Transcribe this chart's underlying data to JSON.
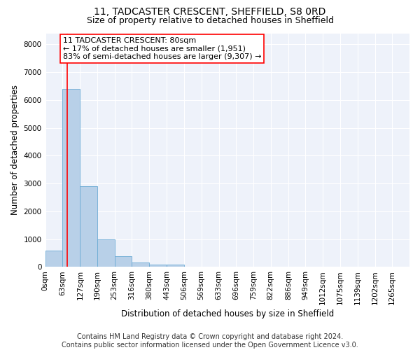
{
  "title1": "11, TADCASTER CRESCENT, SHEFFIELD, S8 0RD",
  "title2": "Size of property relative to detached houses in Sheffield",
  "xlabel": "Distribution of detached houses by size in Sheffield",
  "ylabel": "Number of detached properties",
  "bar_color": "#b8d0e8",
  "bar_edge_color": "#6aaad4",
  "bin_labels": [
    "0sqm",
    "63sqm",
    "127sqm",
    "190sqm",
    "253sqm",
    "316sqm",
    "380sqm",
    "443sqm",
    "506sqm",
    "569sqm",
    "633sqm",
    "696sqm",
    "759sqm",
    "822sqm",
    "886sqm",
    "949sqm",
    "1012sqm",
    "1075sqm",
    "1139sqm",
    "1202sqm",
    "1265sqm"
  ],
  "bar_heights": [
    600,
    6400,
    2900,
    1000,
    380,
    170,
    95,
    80,
    0,
    0,
    0,
    0,
    0,
    0,
    0,
    0,
    0,
    0,
    0,
    0
  ],
  "vline_x": 80,
  "annotation_text": "11 TADCASTER CRESCENT: 80sqm\n← 17% of detached houses are smaller (1,951)\n83% of semi-detached houses are larger (9,307) →",
  "annotation_box_color": "white",
  "annotation_box_edge_color": "red",
  "vline_color": "red",
  "ylim": [
    0,
    8400
  ],
  "yticks": [
    0,
    1000,
    2000,
    3000,
    4000,
    5000,
    6000,
    7000,
    8000
  ],
  "background_color": "#eef2fa",
  "footer_text": "Contains HM Land Registry data © Crown copyright and database right 2024.\nContains public sector information licensed under the Open Government Licence v3.0.",
  "title_fontsize": 10,
  "subtitle_fontsize": 9,
  "axis_label_fontsize": 8.5,
  "tick_fontsize": 7.5,
  "annotation_fontsize": 8,
  "footer_fontsize": 7
}
